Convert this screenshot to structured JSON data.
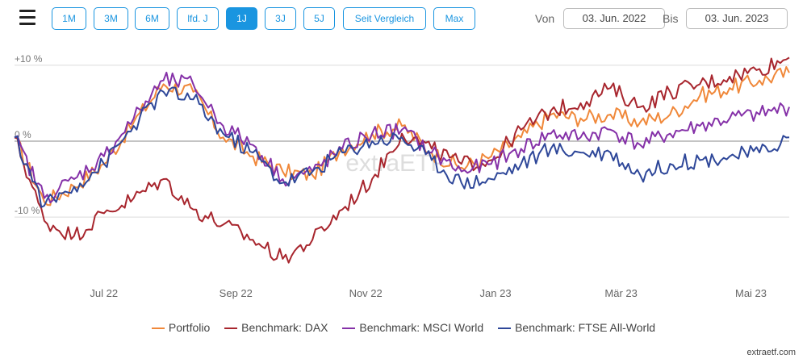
{
  "toolbar": {
    "menu_icon": "hamburger-menu-icon",
    "range_buttons": [
      "1M",
      "3M",
      "6M",
      "lfd. J",
      "1J",
      "3J",
      "5J",
      "Seit Vergleich",
      "Max"
    ],
    "active_range": "1J",
    "from_label": "Von",
    "from_date": "03. Jun. 2022",
    "to_label": "Bis",
    "to_date": "03. Jun. 2023"
  },
  "watermark": "extraETF",
  "credit": "extraetf.com",
  "colors": {
    "accent": "#1a95e0",
    "portfolio": "#f0883a",
    "dax": "#a8262e",
    "msci_world": "#8531a8",
    "ftse_all_world": "#2e4799"
  },
  "chart_data": {
    "type": "line",
    "x": [
      "2022-06-03",
      "2022-06-17",
      "2022-07-01",
      "2022-07-15",
      "2022-07-29",
      "2022-08-12",
      "2022-08-26",
      "2022-09-09",
      "2022-09-23",
      "2022-10-07",
      "2022-10-21",
      "2022-11-04",
      "2022-11-18",
      "2022-12-02",
      "2022-12-16",
      "2022-12-30",
      "2023-01-13",
      "2023-01-27",
      "2023-02-10",
      "2023-02-24",
      "2023-03-10",
      "2023-03-24",
      "2023-04-07",
      "2023-04-21",
      "2023-05-05",
      "2023-05-19",
      "2023-06-02"
    ],
    "series": [
      {
        "name": "Portfolio",
        "values": [
          0.5,
          -8.0,
          -6.0,
          -3.0,
          2.5,
          7.5,
          6.5,
          0.5,
          -2.0,
          -4.0,
          -4.5,
          -1.0,
          1.0,
          2.0,
          -1.5,
          -3.5,
          -2.0,
          0.5,
          3.5,
          3.0,
          3.5,
          2.5,
          3.5,
          6.0,
          7.0,
          8.0,
          9.0
        ]
      },
      {
        "name": "Benchmark: DAX",
        "values": [
          0.5,
          -10.5,
          -12.5,
          -9.5,
          -7.5,
          -5.0,
          -9.0,
          -11.0,
          -13.0,
          -15.5,
          -13.0,
          -9.0,
          -5.0,
          1.0,
          -1.0,
          -3.0,
          -2.5,
          1.5,
          4.0,
          5.0,
          7.0,
          4.5,
          6.5,
          7.5,
          8.5,
          9.5,
          11.0
        ]
      },
      {
        "name": "Benchmark: MSCI World",
        "values": [
          0.5,
          -7.5,
          -5.0,
          -2.0,
          3.0,
          8.0,
          7.5,
          2.0,
          -0.5,
          -5.0,
          -4.0,
          -1.0,
          1.0,
          1.5,
          -1.5,
          -4.0,
          -3.0,
          -1.0,
          1.0,
          0.5,
          1.5,
          -0.5,
          1.0,
          2.0,
          3.0,
          3.5,
          4.5
        ]
      },
      {
        "name": "Benchmark: FTSE All-World",
        "values": [
          0.5,
          -8.5,
          -6.0,
          -3.0,
          2.0,
          6.5,
          5.5,
          1.0,
          -1.5,
          -5.5,
          -4.0,
          -1.5,
          0.0,
          0.5,
          -2.5,
          -5.5,
          -5.0,
          -3.0,
          -1.0,
          -1.5,
          -1.5,
          -4.5,
          -3.0,
          -2.5,
          -2.0,
          -1.5,
          0.5
        ]
      }
    ],
    "x_tick_labels": [
      "Jul 22",
      "Sep 22",
      "Nov 22",
      "Jan 23",
      "Mär 23",
      "Mai 23"
    ],
    "y_tick_labels": [
      "+10 %",
      "0 %",
      "-10 %"
    ],
    "ylim": [
      -17,
      12
    ],
    "grid": "horizontal",
    "legend_position": "bottom"
  }
}
